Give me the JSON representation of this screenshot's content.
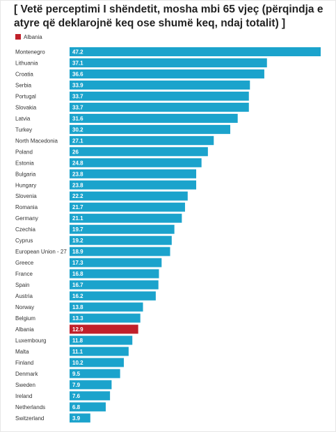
{
  "chart_data": {
    "type": "bar",
    "orientation": "horizontal",
    "title": "[ Vetë perceptimi I shëndetit, mosha mbi 65 vjeç (përqindja e atyre që deklarojnë keq ose shumë keq, ndaj totalit) ]",
    "legend": [
      "Albania"
    ],
    "legend_position": "top-left",
    "categories": [
      "Montenegro",
      "Lithuania",
      "Croatia",
      "Serbia",
      "Portugal",
      "Slovakia",
      "Latvia",
      "Turkey",
      "North Macedonia",
      "Poland",
      "Estonia",
      "Bulgaria",
      "Hungary",
      "Slovenia",
      "Romania",
      "Germany",
      "Czechia",
      "Cyprus",
      "European Union - 27",
      "Greece",
      "France",
      "Spain",
      "Austria",
      "Norway",
      "Belgium",
      "Albania",
      "Luxembourg",
      "Malta",
      "Finland",
      "Denmark",
      "Sweden",
      "Ireland",
      "Netherlands",
      "Switzerland"
    ],
    "values": [
      47.2,
      37.1,
      36.6,
      33.9,
      33.7,
      33.7,
      31.6,
      30.2,
      27.1,
      26,
      24.8,
      23.8,
      23.8,
      22.2,
      21.7,
      21.1,
      19.7,
      19.2,
      18.9,
      17.3,
      16.8,
      16.7,
      16.2,
      13.8,
      13.3,
      12.9,
      11.8,
      11.1,
      10.2,
      9.5,
      7.9,
      7.6,
      6.8,
      3.9
    ],
    "value_labels": [
      "47.2",
      "37.1",
      "36.6",
      "33.9",
      "33.7",
      "33.7",
      "31.6",
      "30.2",
      "27.1",
      "26",
      "24.8",
      "23.8",
      "23.8",
      "22.2",
      "21.7",
      "21.1",
      "19.7",
      "19.2",
      "18.9",
      "17.3",
      "16.8",
      "16.7",
      "16.2",
      "13.8",
      "13.3",
      "12.9",
      "11.8",
      "11.1",
      "10.2",
      "9.5",
      "7.9",
      "7.6",
      "6.8",
      "3.9"
    ],
    "highlight_category": "Albania",
    "xlim": [
      0,
      47.2
    ],
    "grid": false
  },
  "colors": {
    "bar": "#1ba3cc",
    "highlight": "#c0202a"
  }
}
